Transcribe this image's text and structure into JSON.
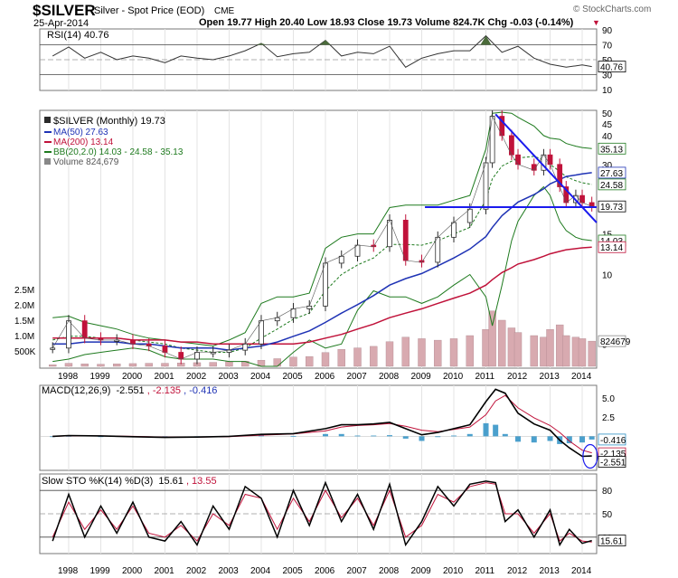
{
  "header": {
    "symbol": "$SILVER",
    "name": "Silver - Spot Price (EOD)",
    "exchange": "CME",
    "date": "25-Apr-2014",
    "ohlc_line": "Open 19.77  High 20.40  Low 18.93  Close 19.73  Volume 824.7K  Chg -0.03 (-0.14%)",
    "down_marker": "▼",
    "watermark": "© StockCharts.com"
  },
  "colors": {
    "price_up": "#2a2a2a",
    "price_down": "#c0123a",
    "ma50": "#1f33b5",
    "ma200": "#c0123a",
    "bb": "#1e7a1e",
    "volume": "#d8aab0",
    "trendline": "#1a1aee",
    "macd_hist": "#2b8fc4"
  },
  "chart_data": [
    {
      "panel": "rsi",
      "type": "line",
      "legend": "RSI(14) 40.76",
      "current_label": "40.76",
      "ticks": [
        "90",
        "70",
        "50",
        "30",
        "10"
      ],
      "levels": [
        70,
        30
      ],
      "ylim": [
        10,
        90
      ],
      "x": [
        1997.5,
        1998.0,
        1998.5,
        1999.0,
        1999.5,
        2000.0,
        2000.5,
        2001.0,
        2001.5,
        2002.0,
        2002.5,
        2003.0,
        2003.5,
        2004.0,
        2004.5,
        2005.0,
        2005.5,
        2006.0,
        2006.5,
        2007.0,
        2007.5,
        2008.0,
        2008.5,
        2009.0,
        2009.5,
        2010.0,
        2010.5,
        2011.0,
        2011.5,
        2012.0,
        2012.5,
        2013.0,
        2013.5,
        2014.0,
        2014.3
      ],
      "values": [
        55,
        67,
        52,
        60,
        50,
        55,
        52,
        46,
        55,
        52,
        50,
        55,
        62,
        72,
        54,
        58,
        60,
        76,
        55,
        60,
        58,
        68,
        40,
        52,
        58,
        62,
        62,
        82,
        60,
        68,
        52,
        44,
        40,
        43,
        40.76
      ]
    },
    {
      "panel": "price",
      "type": "line",
      "legend": [
        "$SILVER (Monthly) 19.73",
        "MA(50) 27.63",
        "MA(200) 13.14",
        "BB(20,2.0) 14.03 - 24.58 - 35.13",
        "Volume 824,679"
      ],
      "ticks": [
        "50",
        "45",
        "40",
        "35",
        "30",
        "25",
        "20",
        "15",
        "10",
        "5"
      ],
      "volume_ticks": [
        "2.5M",
        "2.0M",
        "1.5M",
        "1.0M",
        "500K"
      ],
      "ylim": [
        4,
        51
      ],
      "value_tags": {
        "bb_upper": "35.13",
        "ma50": "27.63",
        "bb_mid": "24.58",
        "close": "19.73",
        "bb_lower": "14.03",
        "ma200": "13.14",
        "volume": "824679"
      },
      "x": [
        1997.5,
        1998.0,
        1998.5,
        1999.0,
        1999.5,
        2000.0,
        2000.5,
        2001.0,
        2001.5,
        2002.0,
        2002.5,
        2003.0,
        2003.5,
        2004.0,
        2004.5,
        2005.0,
        2005.5,
        2006.0,
        2006.5,
        2007.0,
        2007.5,
        2008.0,
        2008.5,
        2009.0,
        2009.5,
        2010.0,
        2010.5,
        2011.0,
        2011.2,
        2011.5,
        2011.8,
        2012.0,
        2012.5,
        2012.8,
        2013.0,
        2013.3,
        2013.5,
        2013.8,
        2014.0,
        2014.3
      ],
      "close": [
        4.8,
        6.3,
        5.3,
        5.2,
        5.2,
        5.0,
        4.9,
        4.6,
        4.3,
        4.6,
        4.6,
        4.7,
        5.0,
        6.3,
        6.5,
        7.1,
        7.3,
        11.2,
        12.0,
        13.4,
        13.2,
        17.2,
        11.5,
        11.3,
        14.5,
        16.8,
        19.2,
        30.5,
        48.5,
        40.0,
        33.0,
        30.0,
        28.3,
        33.0,
        30.0,
        24.0,
        20.5,
        22.0,
        20.5,
        19.73
      ],
      "ma50": [
        5.0,
        5.0,
        5.1,
        5.1,
        5.1,
        5.0,
        5.0,
        4.9,
        4.8,
        4.8,
        4.8,
        4.7,
        4.8,
        4.9,
        5.1,
        5.4,
        5.7,
        6.2,
        6.8,
        7.4,
        8.1,
        9.0,
        9.6,
        10.1,
        10.9,
        11.8,
        12.9,
        14.6,
        16.0,
        18.0,
        19.5,
        20.6,
        22.2,
        23.5,
        24.7,
        25.8,
        26.6,
        27.0,
        27.3,
        27.63
      ],
      "ma200": [
        5.3,
        5.3,
        5.3,
        5.3,
        5.3,
        5.2,
        5.2,
        5.2,
        5.1,
        5.1,
        5.0,
        5.0,
        5.0,
        5.0,
        5.0,
        5.0,
        5.1,
        5.3,
        5.5,
        5.8,
        6.1,
        6.5,
        6.8,
        7.1,
        7.5,
        7.9,
        8.3,
        9.0,
        9.5,
        10.2,
        10.7,
        11.1,
        11.6,
        12.0,
        12.3,
        12.6,
        12.8,
        12.95,
        13.05,
        13.14
      ],
      "bb_upper": [
        6.5,
        6.6,
        6.2,
        6.0,
        5.8,
        5.5,
        5.3,
        5.2,
        5.1,
        5.0,
        4.9,
        5.2,
        5.6,
        7.5,
        8.0,
        8.0,
        8.3,
        13.0,
        14.5,
        15.0,
        15.0,
        19.5,
        20.0,
        20.0,
        20.0,
        21.0,
        22.0,
        35.0,
        50.0,
        50.5,
        50.0,
        48.0,
        44.0,
        40.0,
        39.0,
        38.5,
        37.0,
        36.0,
        35.5,
        35.13
      ],
      "bb_mid": [
        5.2,
        5.4,
        5.4,
        5.3,
        5.3,
        5.2,
        5.1,
        5.0,
        4.8,
        4.7,
        4.6,
        4.6,
        4.8,
        5.3,
        5.8,
        6.4,
        6.8,
        8.5,
        10.0,
        11.0,
        11.8,
        13.5,
        13.5,
        13.4,
        14.0,
        15.0,
        16.0,
        21.0,
        26.0,
        29.5,
        31.0,
        32.0,
        32.5,
        31.5,
        30.0,
        28.0,
        26.5,
        25.5,
        25.0,
        24.58
      ],
      "bb_lower": [
        4.2,
        4.3,
        4.5,
        4.6,
        4.7,
        4.8,
        4.7,
        4.4,
        4.3,
        4.3,
        4.3,
        4.2,
        4.2,
        4.0,
        4.0,
        4.6,
        5.2,
        4.8,
        5.0,
        7.0,
        8.5,
        8.0,
        8.0,
        7.5,
        8.0,
        9.0,
        10.0,
        8.0,
        6.0,
        9.0,
        14.0,
        17.0,
        22.0,
        24.0,
        22.0,
        17.0,
        15.5,
        14.5,
        14.2,
        14.03
      ],
      "volume_m": [
        0.05,
        0.1,
        0.08,
        0.07,
        0.08,
        0.09,
        0.1,
        0.1,
        0.11,
        0.12,
        0.13,
        0.15,
        0.17,
        0.2,
        0.25,
        0.3,
        0.32,
        0.45,
        0.55,
        0.6,
        0.65,
        0.8,
        0.95,
        0.9,
        0.85,
        0.9,
        1.0,
        1.2,
        1.8,
        1.5,
        1.25,
        1.1,
        1.0,
        0.95,
        1.2,
        1.35,
        1.0,
        0.95,
        0.9,
        0.82
      ]
    },
    {
      "panel": "macd",
      "type": "line",
      "legend": [
        "MACD(12,26,9)",
        "-2.551",
        ", -2.135",
        ", -0.416"
      ],
      "ticks": [
        "5.0",
        "2.5"
      ],
      "value_tags": {
        "hist": "-0.416",
        "signal": "-2.135",
        "macd": "-2.551"
      },
      "ylim": [
        -4.3,
        6.5
      ],
      "x": [
        1997.5,
        1998.0,
        1999.0,
        2000.0,
        2001.0,
        2002.0,
        2003.0,
        2004.0,
        2005.0,
        2006.0,
        2006.5,
        2007.0,
        2007.5,
        2008.0,
        2008.5,
        2009.0,
        2009.5,
        2010.0,
        2010.5,
        2011.0,
        2011.3,
        2011.6,
        2012.0,
        2012.5,
        2013.0,
        2013.3,
        2013.6,
        2014.0,
        2014.3
      ],
      "macd": [
        0.0,
        0.1,
        0.05,
        -0.05,
        -0.15,
        -0.1,
        0.0,
        0.25,
        0.35,
        1.0,
        1.5,
        1.5,
        1.6,
        1.8,
        1.0,
        0.2,
        0.5,
        1.0,
        1.5,
        4.5,
        6.1,
        5.6,
        3.0,
        1.6,
        0.8,
        -0.5,
        -1.5,
        -2.6,
        -2.55
      ],
      "signal": [
        0.0,
        0.05,
        0.05,
        0.0,
        -0.1,
        -0.1,
        -0.05,
        0.15,
        0.3,
        0.7,
        1.2,
        1.4,
        1.5,
        1.65,
        1.3,
        0.8,
        0.6,
        0.9,
        1.2,
        2.8,
        4.6,
        5.3,
        3.7,
        2.4,
        1.4,
        0.5,
        -0.6,
        -1.8,
        -2.135
      ],
      "histogram": [
        0.0,
        0.05,
        0.0,
        -0.05,
        -0.05,
        0.0,
        0.05,
        0.1,
        0.05,
        0.3,
        0.3,
        0.1,
        0.1,
        0.15,
        -0.3,
        -0.6,
        -0.1,
        0.1,
        0.3,
        1.7,
        1.5,
        0.3,
        -0.7,
        -0.8,
        -0.6,
        -1.0,
        -0.9,
        -0.8,
        -0.416
      ]
    },
    {
      "panel": "sto",
      "type": "line",
      "legend": [
        "Slow STO %K(14) %D(3)",
        "15.61",
        ", 13.55"
      ],
      "ticks": [
        "80",
        "50",
        "20"
      ],
      "current_label": "15.61",
      "ylim": [
        0,
        100
      ],
      "x": [
        1997.5,
        1998.0,
        1998.5,
        1999.0,
        1999.5,
        2000.0,
        2000.5,
        2001.0,
        2001.5,
        2002.0,
        2002.5,
        2003.0,
        2003.5,
        2004.0,
        2004.5,
        2005.0,
        2005.5,
        2006.0,
        2006.5,
        2007.0,
        2007.5,
        2008.0,
        2008.5,
        2009.0,
        2009.5,
        2010.0,
        2010.5,
        2011.0,
        2011.3,
        2011.6,
        2012.0,
        2012.5,
        2013.0,
        2013.3,
        2013.6,
        2014.0,
        2014.3
      ],
      "k": [
        15,
        75,
        20,
        60,
        25,
        65,
        20,
        15,
        40,
        10,
        60,
        30,
        85,
        70,
        20,
        80,
        35,
        90,
        40,
        75,
        30,
        88,
        10,
        40,
        85,
        60,
        88,
        92,
        90,
        40,
        55,
        20,
        55,
        10,
        30,
        12,
        15.61
      ],
      "d": [
        20,
        65,
        30,
        55,
        30,
        60,
        25,
        20,
        35,
        15,
        50,
        35,
        75,
        70,
        30,
        70,
        40,
        80,
        45,
        70,
        35,
        80,
        20,
        35,
        75,
        65,
        85,
        90,
        88,
        50,
        50,
        25,
        50,
        15,
        25,
        15,
        13.55
      ]
    }
  ],
  "x_axis": {
    "domain": [
      1997.1,
      2014.45
    ],
    "years": [
      "1998",
      "1999",
      "2000",
      "2001",
      "2002",
      "2003",
      "2004",
      "2005",
      "2006",
      "2007",
      "2008",
      "2009",
      "2010",
      "2011",
      "2012",
      "2013",
      "2014"
    ]
  }
}
